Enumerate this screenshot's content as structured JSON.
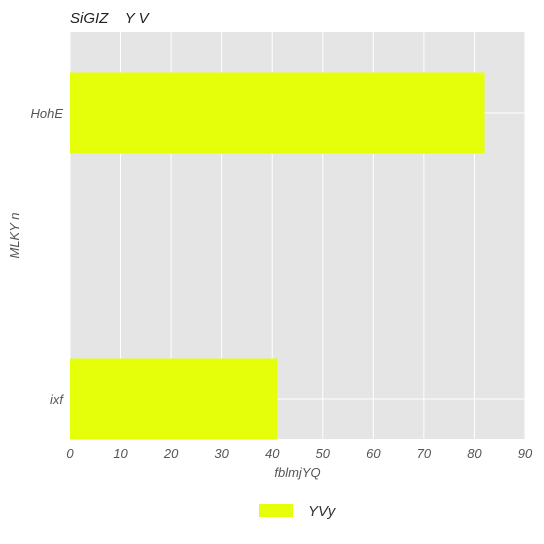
{
  "chart_data": {
    "type": "bar",
    "orientation": "horizontal",
    "title": "SiGIZ    Y V",
    "xlabel": "fblmjYQ",
    "ylabel": "MLKY n",
    "categories": [
      "HohE",
      "ixf"
    ],
    "series": [
      {
        "name": "YVy",
        "values": [
          82,
          41
        ],
        "color": "#e5ff0a"
      }
    ],
    "xlim": [
      0,
      90
    ],
    "xticks": [
      0,
      10,
      20,
      30,
      40,
      50,
      60,
      70,
      80,
      90
    ],
    "grid": true,
    "legend_position": "bottom-center",
    "colors": {
      "plot_background": "#e5e5e5",
      "grid": "#ffffff"
    }
  }
}
